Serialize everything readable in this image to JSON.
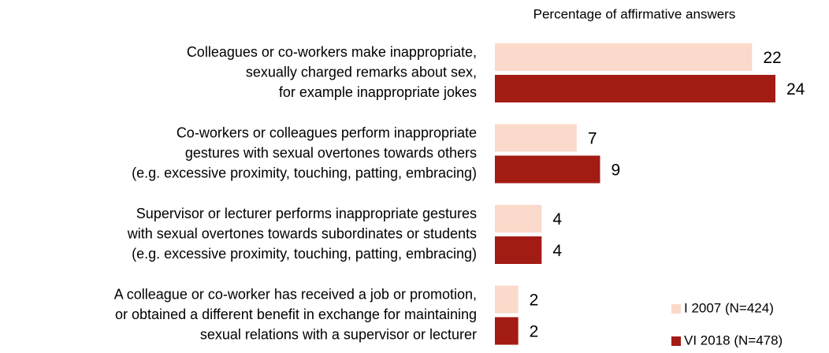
{
  "chart_data": {
    "type": "bar",
    "orientation": "horizontal",
    "subtitle": "Percentage of affirmative answers",
    "categories": [
      [
        "Colleagues or co-workers make inappropriate,",
        "sexually charged remarks about sex,",
        "for example inappropriate jokes"
      ],
      [
        "Co-workers or colleagues perform inappropriate",
        "gestures with sexual overtones towards others",
        "(e.g. excessive proximity, touching, patting, embracing)"
      ],
      [
        "Supervisor or lecturer performs inappropriate gestures",
        "with sexual overtones towards subordinates or students",
        "(e.g. excessive proximity, touching, patting, embracing)"
      ],
      [
        "A colleague or co-worker has received a job or promotion,",
        "or obtained a different benefit in exchange for maintaining",
        "sexual relations with a supervisor or lecturer"
      ]
    ],
    "series": [
      {
        "name": "I 2007 (N=424)",
        "color": "#fbdacb",
        "values": [
          22,
          7,
          4,
          2
        ]
      },
      {
        "name": "VI 2018 (N=478)",
        "color": "#a31c14",
        "values": [
          24,
          9,
          4,
          2
        ]
      }
    ],
    "legend": "lower right"
  }
}
